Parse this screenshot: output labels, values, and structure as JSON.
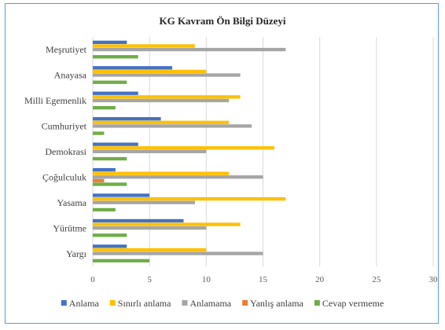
{
  "chart_data": {
    "type": "bar",
    "orientation": "horizontal",
    "title": "KG Kavram Ön Bilgi Düzeyi",
    "categories": [
      "Meşrutiyet",
      "Anayasa",
      "Milli Egemenlik",
      "Cumhuriyet",
      "Demokrasi",
      "Çoğulculuk",
      "Yasama",
      "Yürütme",
      "Yargı"
    ],
    "series": [
      {
        "name": "Anlama",
        "color": "#4472c4",
        "values": [
          3,
          7,
          4,
          6,
          4,
          2,
          5,
          8,
          3
        ]
      },
      {
        "name": "Sınırlı anlama",
        "color": "#ffc000",
        "values": [
          9,
          10,
          13,
          12,
          16,
          12,
          17,
          13,
          10
        ]
      },
      {
        "name": "Anlamama",
        "color": "#a5a5a5",
        "values": [
          17,
          13,
          12,
          14,
          10,
          15,
          9,
          10,
          15
        ]
      },
      {
        "name": "Yanlış anlama",
        "color": "#ed7d31",
        "values": [
          0,
          0,
          0,
          0,
          0,
          1,
          0,
          0,
          0
        ]
      },
      {
        "name": "Cevap vermeme",
        "color": "#70ad47",
        "values": [
          4,
          3,
          2,
          1,
          3,
          3,
          2,
          3,
          5
        ]
      }
    ],
    "xlim": [
      0,
      30
    ],
    "x_ticks": [
      "0",
      "5",
      "10",
      "15",
      "20",
      "25",
      "30"
    ],
    "grid": "vertical",
    "legend_position": "bottom"
  }
}
